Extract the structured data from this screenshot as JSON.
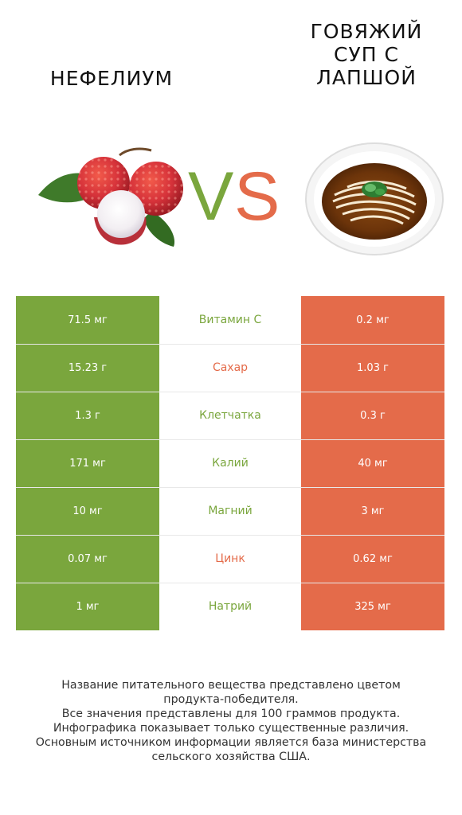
{
  "header": {
    "left_product": "НЕФЕЛИУМ",
    "vs": "VS",
    "right_product_lines": [
      "ГОВЯЖИЙ",
      "СУП С",
      "ЛАПШОЙ"
    ]
  },
  "colors": {
    "left": "#7aa63d",
    "right": "#e46b4a",
    "vs_v": "#7aa63d",
    "vs_s": "#e46b4a"
  },
  "chart_data": {
    "type": "table",
    "columns": [
      "Нефелиум",
      "Говяжий суп с лапшой"
    ],
    "rows": [
      {
        "nutrient": "Витамин C",
        "left": "71.5 мг",
        "right": "0.2 мг",
        "winner": "left"
      },
      {
        "nutrient": "Сахар",
        "left": "15.23 г",
        "right": "1.03 г",
        "winner": "right"
      },
      {
        "nutrient": "Клетчатка",
        "left": "1.3 г",
        "right": "0.3 г",
        "winner": "left"
      },
      {
        "nutrient": "Калий",
        "left": "171 мг",
        "right": "40 мг",
        "winner": "left"
      },
      {
        "nutrient": "Магний",
        "left": "10 мг",
        "right": "3 мг",
        "winner": "left"
      },
      {
        "nutrient": "Цинк",
        "left": "0.07 мг",
        "right": "0.62 мг",
        "winner": "right"
      },
      {
        "nutrient": "Натрий",
        "left": "1 мг",
        "right": "325 мг",
        "winner": "left"
      }
    ]
  },
  "footnote": [
    "Название питательного вещества представлено цветом",
    "продукта-победителя.",
    "Все значения представлены для 100 граммов продукта.",
    "Инфографика показывает только существенные различия.",
    "Основным источником информации является база министерства",
    "сельского хозяйства США."
  ]
}
